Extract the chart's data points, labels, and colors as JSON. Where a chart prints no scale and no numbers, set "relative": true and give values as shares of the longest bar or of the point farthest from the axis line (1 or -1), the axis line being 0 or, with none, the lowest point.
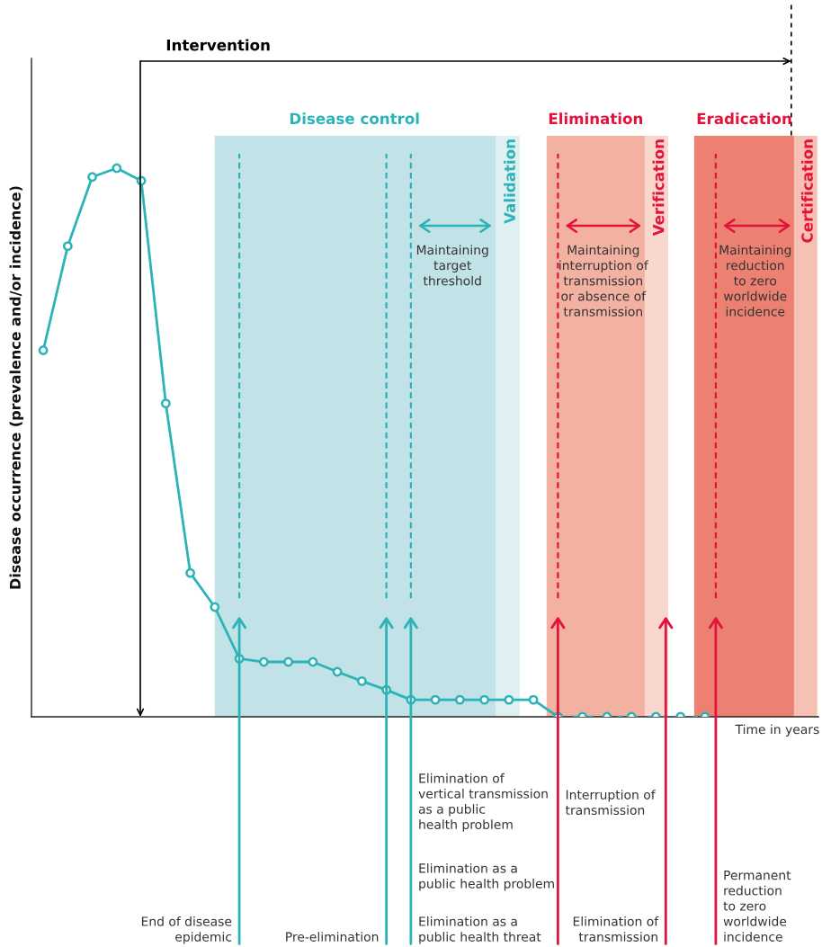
{
  "chart_data": {
    "type": "line",
    "relative": true,
    "marker": "circle",
    "grid": false,
    "xlabel": "Time in years",
    "ylabel": "Disease occurrence (prevalence and/or incidence)",
    "categories": [
      null,
      null,
      null,
      null,
      null,
      null,
      null,
      null,
      null,
      null,
      null,
      null,
      null,
      null,
      null,
      null,
      null,
      null,
      null,
      null,
      null,
      null,
      null,
      null,
      null,
      null,
      null,
      null
    ],
    "series": [
      {
        "color": "#2bb3b8",
        "line_style": "solid",
        "values": [
          0.668,
          0.858,
          0.984,
          1,
          0.977,
          0.571,
          0.262,
          0.2,
          0.106,
          0.1,
          0.1,
          0.1,
          0.082,
          0.065,
          0.049,
          0.031,
          0.031,
          0.031,
          0.031,
          0.031,
          0.031,
          0,
          null,
          null,
          null,
          null,
          null,
          null
        ]
      },
      {
        "color": "#2bb3b8",
        "line_style": "dotted",
        "values": [
          null,
          null,
          null,
          null,
          null,
          null,
          null,
          null,
          null,
          null,
          null,
          null,
          null,
          null,
          null,
          null,
          null,
          null,
          null,
          null,
          null,
          0,
          0,
          0,
          0,
          0,
          0,
          0
        ]
      }
    ],
    "annotations": [
      "Intervention",
      "Disease control",
      "Validation",
      "Elimination",
      "Verification",
      "Eradication",
      "Certification",
      "Maintaining\ntarget\nthreshold",
      "Maintaining\ninterruption of\ntransmission\nor absence of\ntransmission",
      "Maintaining\nreduction\nto zero\nworldwide\nincidence",
      "End of disease\nepidemic",
      "Pre-elimination",
      "Elimination of\nvertical transmission\nas a public\nhealth problem",
      "Elimination as a\npublic health problem",
      "Elimination as a\npublic health threat",
      "Interruption of\ntransmission",
      "Elimination of\ntransmission",
      "Permanent\nreduction\nto zero\nworldwide\nincidence"
    ]
  }
}
